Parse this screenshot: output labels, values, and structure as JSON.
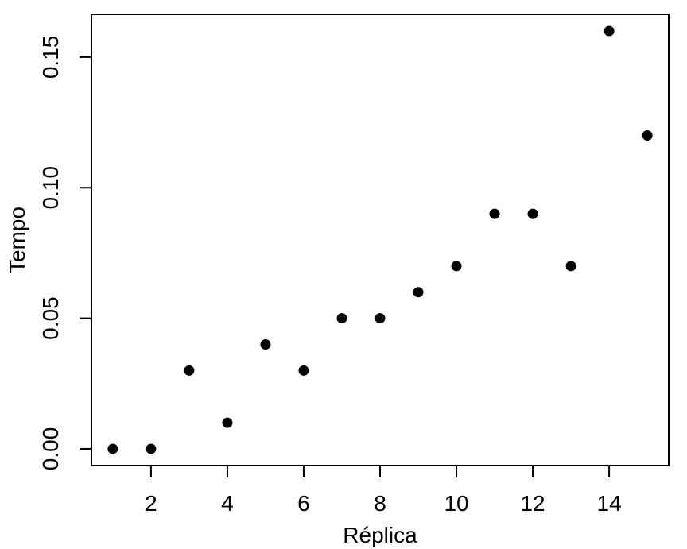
{
  "chart_data": {
    "type": "scatter",
    "title": "",
    "xlabel": "Réplica",
    "ylabel": "Tempo",
    "x": [
      1,
      2,
      3,
      4,
      5,
      6,
      7,
      8,
      9,
      10,
      11,
      12,
      13,
      14,
      15
    ],
    "y": [
      0.0,
      0.0,
      0.03,
      0.01,
      0.04,
      0.03,
      0.05,
      0.05,
      0.06,
      0.07,
      0.09,
      0.09,
      0.07,
      0.16,
      0.12
    ],
    "xlim": [
      0.44,
      15.56
    ],
    "ylim": [
      -0.0064,
      0.1664
    ],
    "x_ticks": [
      2,
      4,
      6,
      8,
      10,
      12,
      14
    ],
    "x_tick_labels": [
      "2",
      "4",
      "6",
      "8",
      "10",
      "12",
      "14"
    ],
    "y_ticks": [
      0.0,
      0.05,
      0.1,
      0.15
    ],
    "y_tick_labels": [
      "0.00",
      "0.05",
      "0.10",
      "0.15"
    ],
    "grid": false,
    "point_color": "#000000"
  }
}
